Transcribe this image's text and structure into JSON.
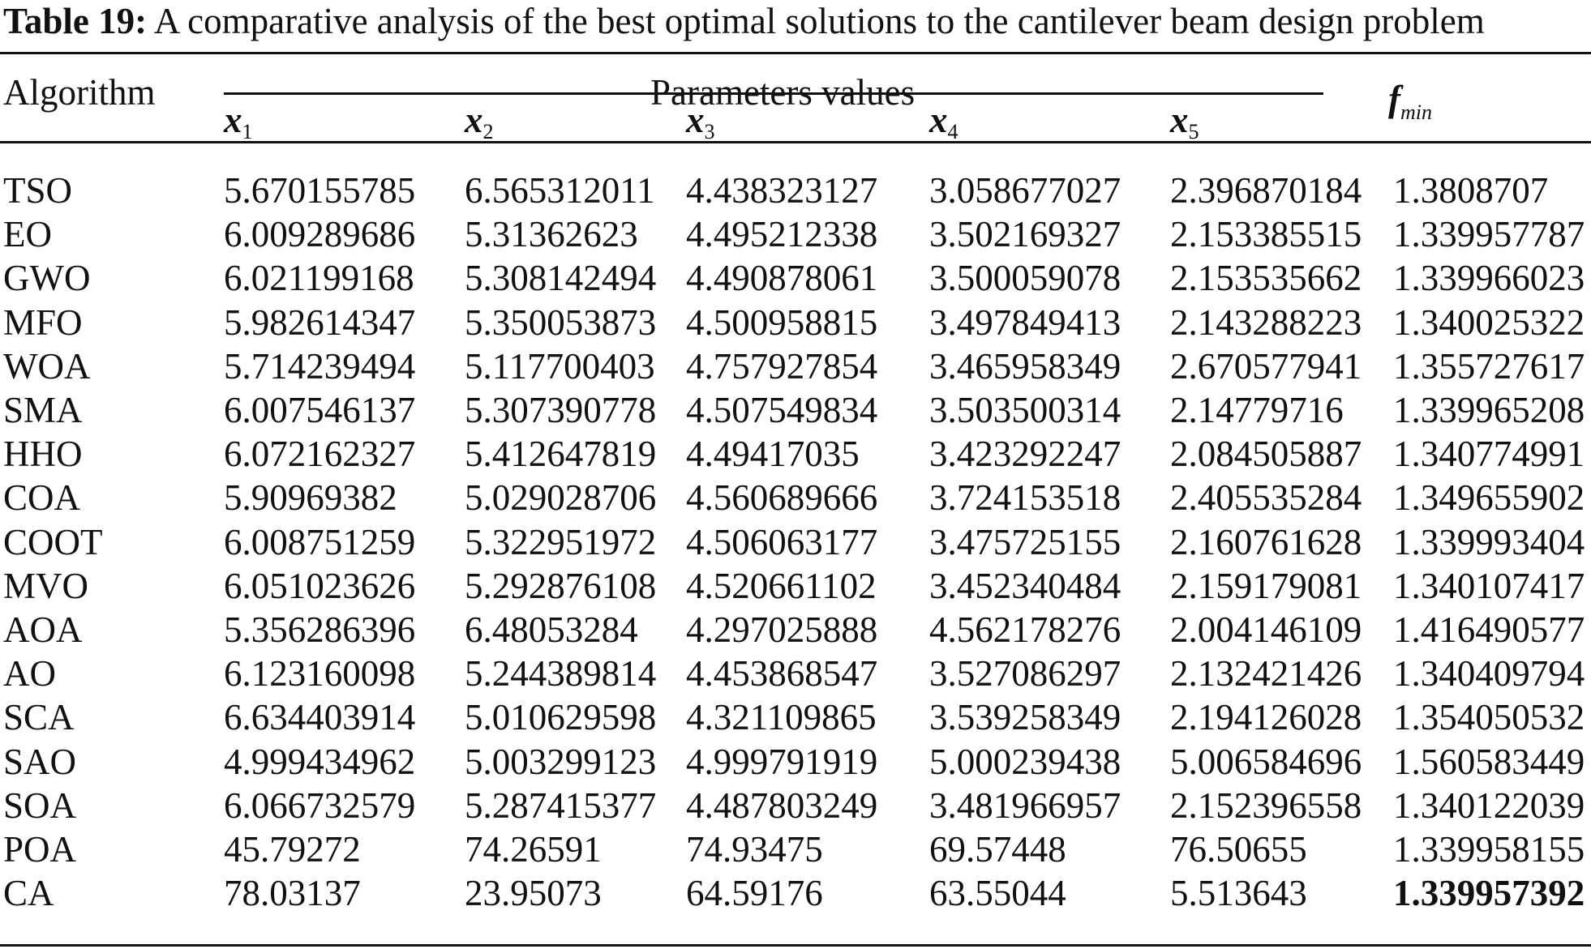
{
  "caption": {
    "label": "Table 19:",
    "text": "A comparative analysis of the best optimal solutions to the cantilever beam design problem"
  },
  "header": {
    "algorithm": "Algorithm",
    "parameters": "Parameters values",
    "fmin_main": "f",
    "fmin_sub": "min",
    "vars": [
      {
        "main": "x",
        "sub": "1"
      },
      {
        "main": "x",
        "sub": "2"
      },
      {
        "main": "x",
        "sub": "3"
      },
      {
        "main": "x",
        "sub": "4"
      },
      {
        "main": "x",
        "sub": "5"
      }
    ]
  },
  "rows": [
    {
      "algo": "TSO",
      "values": [
        "5.670155785",
        "6.565312011",
        "4.438323127",
        "3.058677027",
        "2.396870184",
        "1.3808707"
      ]
    },
    {
      "algo": "EO",
      "values": [
        "6.009289686",
        "5.31362623",
        "4.495212338",
        "3.502169327",
        "2.153385515",
        "1.339957787"
      ]
    },
    {
      "algo": "GWO",
      "values": [
        "6.021199168",
        "5.308142494",
        "4.490878061",
        "3.500059078",
        "2.153535662",
        "1.339966023"
      ]
    },
    {
      "algo": "MFO",
      "values": [
        "5.982614347",
        "5.350053873",
        "4.500958815",
        "3.497849413",
        "2.143288223",
        "1.340025322"
      ]
    },
    {
      "algo": "WOA",
      "values": [
        "5.714239494",
        "5.117700403",
        "4.757927854",
        "3.465958349",
        "2.670577941",
        "1.355727617"
      ]
    },
    {
      "algo": "SMA",
      "values": [
        "6.007546137",
        "5.307390778",
        "4.507549834",
        "3.503500314",
        "2.14779716",
        "1.339965208"
      ]
    },
    {
      "algo": "HHO",
      "values": [
        "6.072162327",
        "5.412647819",
        "4.49417035",
        "3.423292247",
        "2.084505887",
        "1.340774991"
      ]
    },
    {
      "algo": "COA",
      "values": [
        "5.90969382",
        "5.029028706",
        "4.560689666",
        "3.724153518",
        "2.405535284",
        "1.349655902"
      ]
    },
    {
      "algo": "COOT",
      "values": [
        "6.008751259",
        "5.322951972",
        "4.506063177",
        "3.475725155",
        "2.160761628",
        "1.339993404"
      ]
    },
    {
      "algo": "MVO",
      "values": [
        "6.051023626",
        "5.292876108",
        "4.520661102",
        "3.452340484",
        "2.159179081",
        "1.340107417"
      ]
    },
    {
      "algo": "AOA",
      "values": [
        "5.356286396",
        "6.48053284",
        "4.297025888",
        "4.562178276",
        "2.004146109",
        "1.416490577"
      ]
    },
    {
      "algo": "AO",
      "values": [
        "6.123160098",
        "5.244389814",
        "4.453868547",
        "3.527086297",
        "2.132421426",
        "1.340409794"
      ]
    },
    {
      "algo": "SCA",
      "values": [
        "6.634403914",
        "5.010629598",
        "4.321109865",
        "3.539258349",
        "2.194126028",
        "1.354050532"
      ]
    },
    {
      "algo": "SAO",
      "values": [
        "4.999434962",
        "5.003299123",
        "4.999791919",
        "5.000239438",
        "5.006584696",
        "1.560583449"
      ]
    },
    {
      "algo": "SOA",
      "values": [
        "6.066732579",
        "5.287415377",
        "4.487803249",
        "3.481966957",
        "2.152396558",
        "1.340122039"
      ]
    },
    {
      "algo": "POA",
      "values": [
        "45.79272",
        "74.26591",
        "74.93475",
        "69.57448",
        "76.50655",
        "1.339958155"
      ]
    },
    {
      "algo": "CA",
      "values": [
        "78.03137",
        "23.95073",
        "64.59176",
        "63.55044",
        "5.513643",
        "1.339957392"
      ],
      "best_col": 5
    }
  ]
}
